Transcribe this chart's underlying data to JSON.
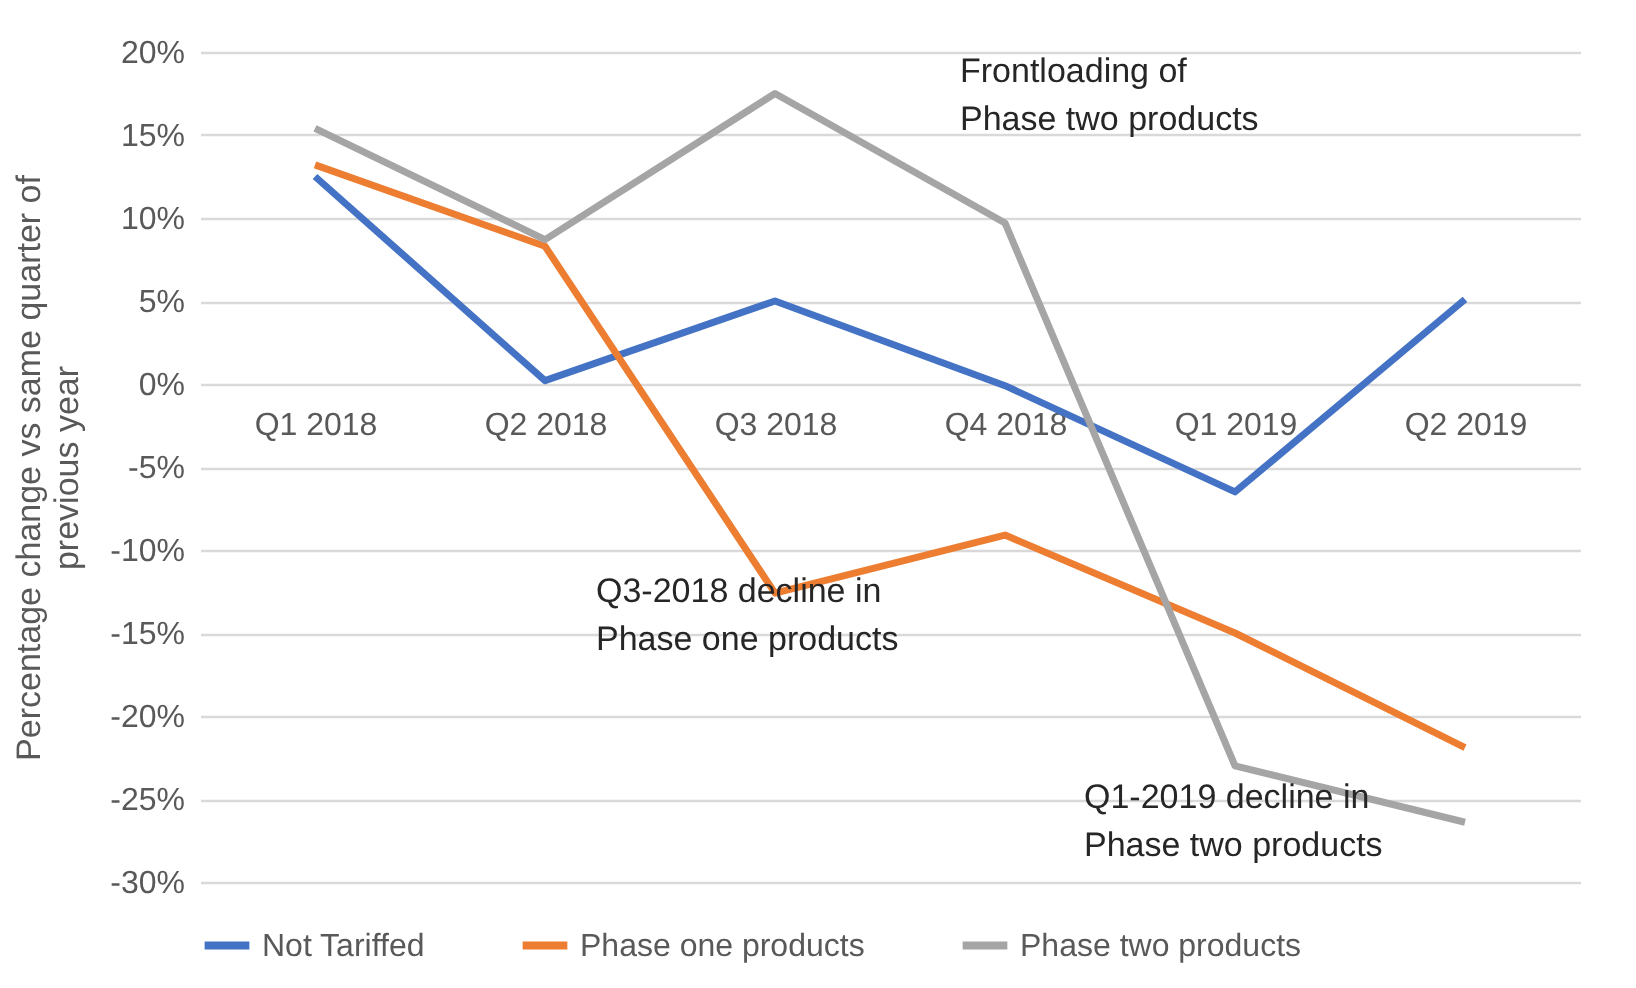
{
  "chart_data": {
    "type": "line",
    "ylabel": "Percentage change vs same quarter of\nprevious year",
    "categories": [
      "Q1 2018",
      "Q2 2018",
      "Q3 2018",
      "Q4 2018",
      "Q1 2019",
      "Q2 2019"
    ],
    "series": [
      {
        "name": "Not Tariffed",
        "color": "#4472c4",
        "values": [
          12.5,
          0.2,
          5.0,
          -0.1,
          -6.5,
          5.1
        ]
      },
      {
        "name": "Phase one products",
        "color": "#ed7d31",
        "values": [
          13.2,
          8.3,
          -12.6,
          -9.1,
          -15.0,
          -21.9
        ]
      },
      {
        "name": "Phase two products",
        "color": "#a5a5a5",
        "values": [
          15.4,
          8.7,
          17.5,
          9.7,
          -23.0,
          -26.4
        ]
      }
    ],
    "ylim": [
      -30,
      20
    ],
    "yticks": [
      {
        "value": -30,
        "label": "-30%"
      },
      {
        "value": -25,
        "label": "-25%"
      },
      {
        "value": -20,
        "label": "-20%"
      },
      {
        "value": -15,
        "label": "-15%"
      },
      {
        "value": -10,
        "label": "-10%"
      },
      {
        "value": -5,
        "label": "-5%"
      },
      {
        "value": 0,
        "label": "0%"
      },
      {
        "value": 5,
        "label": "5%"
      },
      {
        "value": 10,
        "label": "10%"
      },
      {
        "value": 15,
        "label": "15%"
      },
      {
        "value": 20,
        "label": "20%"
      }
    ],
    "annotations": [
      "Frontloading of\nPhase two products",
      "Q3-2018 decline in\nPhase one products",
      "Q1-2019 decline in\nPhase two products"
    ],
    "grid": "y",
    "legend": "bottom",
    "marker": "none",
    "line_style": "solid"
  }
}
